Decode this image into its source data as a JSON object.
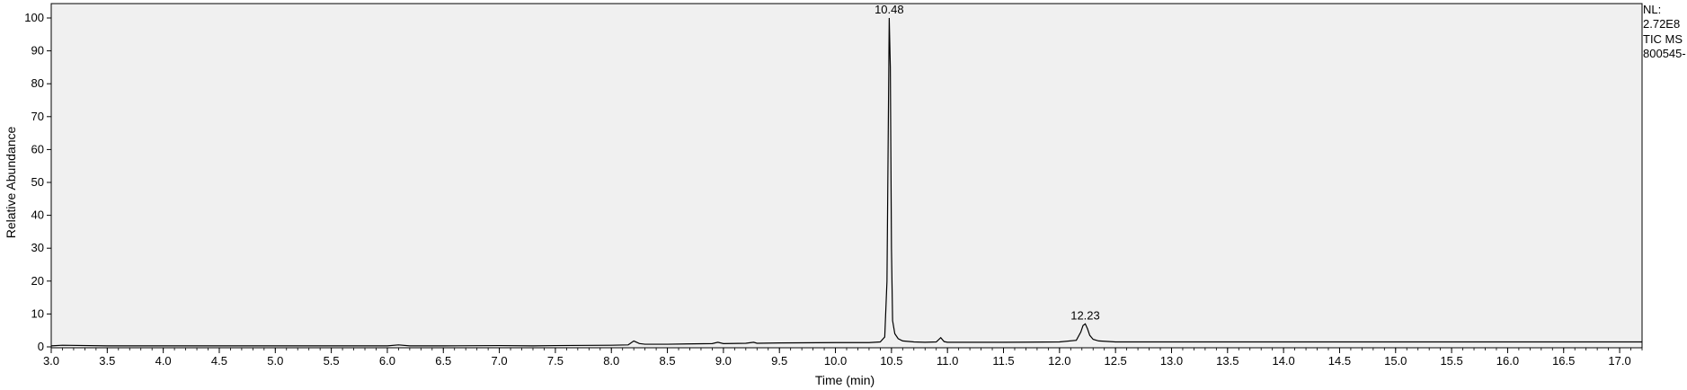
{
  "chart_data": {
    "type": "line",
    "xlabel": "Time (min)",
    "ylabel": "Relative Abundance",
    "xlim": [
      3.0,
      17.2
    ],
    "ylim": [
      0,
      100
    ],
    "x_ticks": [
      "3.0",
      "3.5",
      "4.0",
      "4.5",
      "5.0",
      "5.5",
      "6.0",
      "6.5",
      "7.0",
      "7.5",
      "8.0",
      "8.5",
      "9.0",
      "9.5",
      "10.0",
      "10.5",
      "11.0",
      "11.5",
      "12.0",
      "12.5",
      "13.0",
      "13.5",
      "14.0",
      "14.5",
      "15.0",
      "15.5",
      "16.0",
      "16.5",
      "17.0"
    ],
    "y_ticks": [
      "0",
      "10",
      "20",
      "30",
      "40",
      "50",
      "60",
      "70",
      "80",
      "90",
      "100"
    ],
    "peak_labels": [
      {
        "x": 10.48,
        "y": 100,
        "text": "10.48"
      },
      {
        "x": 12.23,
        "y": 7,
        "text": "12.23"
      }
    ],
    "info": [
      "NL:",
      "2.72E8",
      "TIC  MS",
      "800545-"
    ],
    "series": [
      {
        "x": [
          3.0,
          3.1,
          3.5,
          4.0,
          4.5,
          5.0,
          5.5,
          6.0,
          6.1,
          6.2,
          6.5,
          7.0,
          7.3,
          7.5,
          8.0,
          8.15,
          8.2,
          8.25,
          8.3,
          8.5,
          8.9,
          8.95,
          9.0,
          9.2,
          9.27,
          9.3,
          9.5,
          10.0,
          10.3,
          10.4,
          10.44,
          10.46,
          10.47,
          10.48,
          10.49,
          10.5,
          10.51,
          10.53,
          10.56,
          10.6,
          10.7,
          10.8,
          10.9,
          10.94,
          10.97,
          11.0,
          11.5,
          12.0,
          12.15,
          12.19,
          12.21,
          12.23,
          12.25,
          12.27,
          12.3,
          12.35,
          12.45,
          12.5,
          13.0,
          14.0,
          15.0,
          16.0,
          17.0,
          17.2
        ],
        "y": [
          0.3,
          0.5,
          0.3,
          0.3,
          0.3,
          0.3,
          0.3,
          0.3,
          0.6,
          0.3,
          0.3,
          0.4,
          0.3,
          0.4,
          0.5,
          0.6,
          1.8,
          1.0,
          0.8,
          0.8,
          1.0,
          1.4,
          1.0,
          1.1,
          1.4,
          1.1,
          1.2,
          1.3,
          1.3,
          1.5,
          3.0,
          20.0,
          60.0,
          100.0,
          85.0,
          30.0,
          8.0,
          4.0,
          2.5,
          1.8,
          1.5,
          1.4,
          1.5,
          2.8,
          1.6,
          1.4,
          1.4,
          1.5,
          2.0,
          4.5,
          6.5,
          7.0,
          5.5,
          3.5,
          2.3,
          1.8,
          1.6,
          1.5,
          1.5,
          1.5,
          1.5,
          1.5,
          1.5,
          1.5
        ]
      }
    ]
  }
}
